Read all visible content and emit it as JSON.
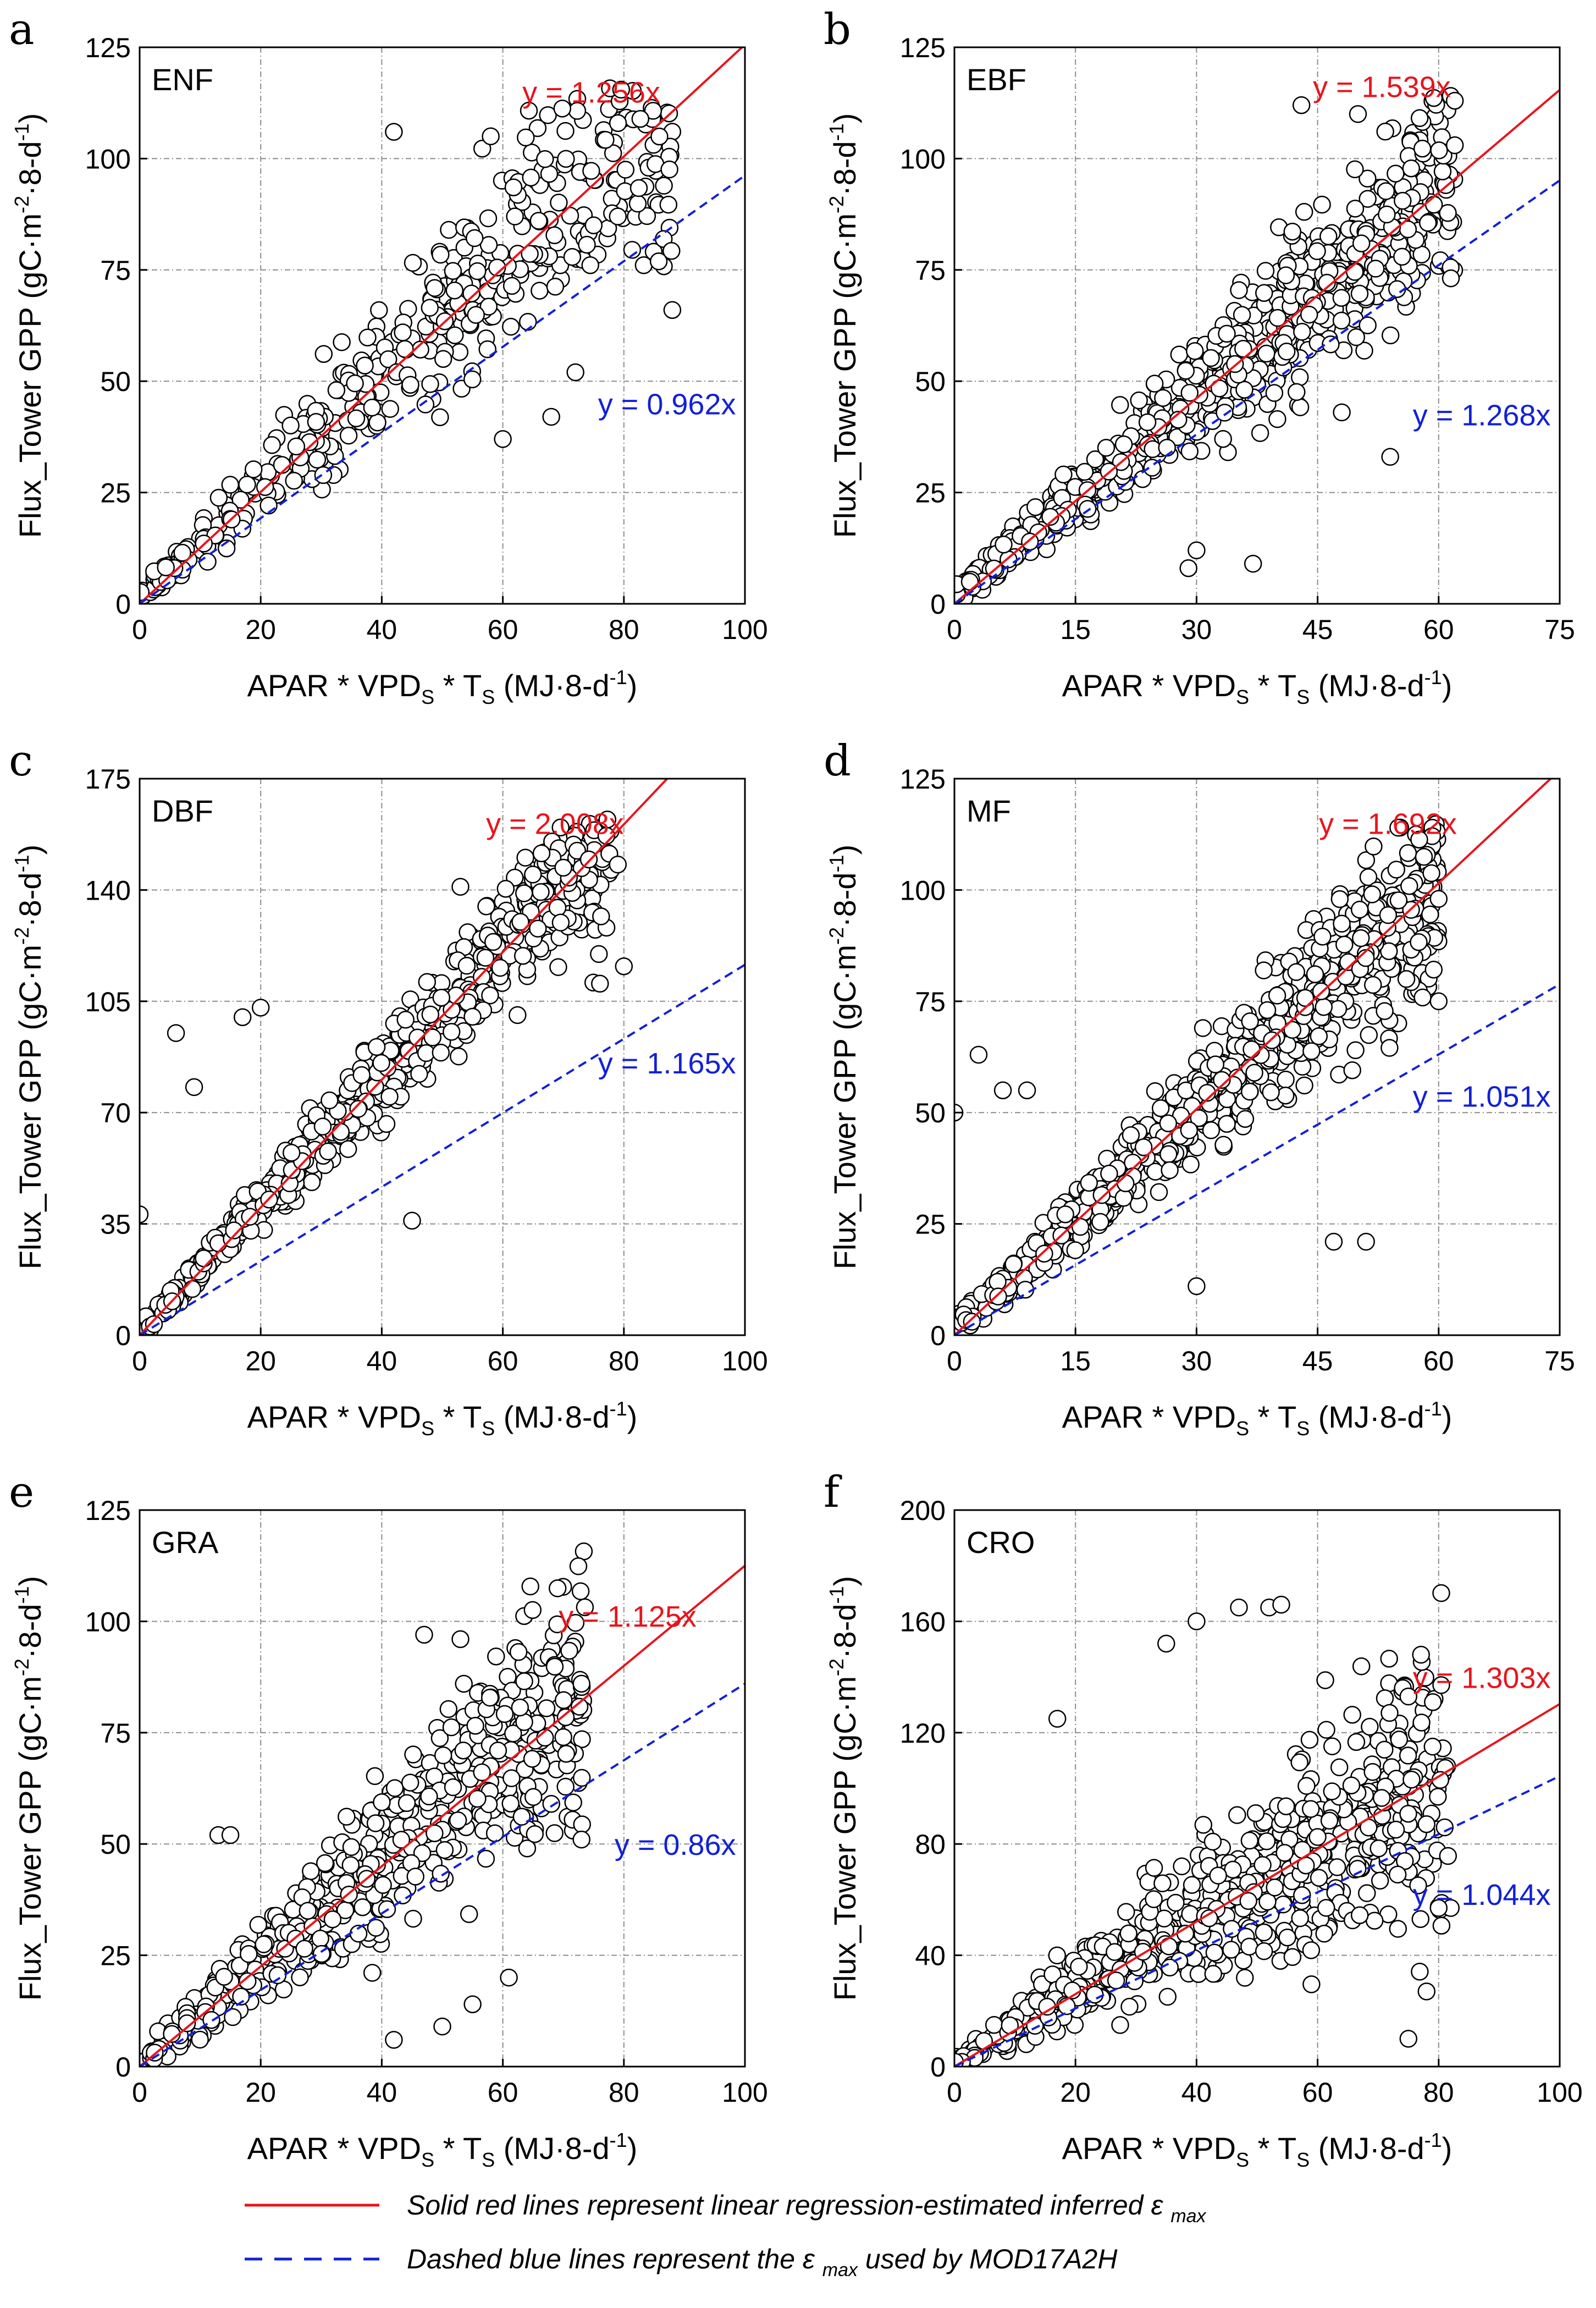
{
  "figure": {
    "colors": {
      "regression": "#e8141c",
      "mod17": "#1220d8",
      "points_edge": "#000000",
      "grid": "#8c8c8c"
    }
  },
  "legend": {
    "regression_text": "Solid red lines represent linear regression-estimated inferred ε",
    "regression_sub": "max",
    "mod17_text_pre": "Dashed blue lines represent the ε",
    "mod17_sub": "max",
    "mod17_text_post": " used by MOD17A2H"
  },
  "chart_data": [
    {
      "panel": "a",
      "cover": "ENF",
      "type": "scatter",
      "xlabel": "APAR * VPDS * TS (MJ·8-d-1)",
      "ylabel": "Flux_Tower GPP (gC·m-2·8-d-1)",
      "xlim": [
        0,
        100
      ],
      "ylim": [
        0,
        125
      ],
      "xticks": [
        0,
        20,
        40,
        60,
        80,
        100
      ],
      "yticks": [
        0,
        25,
        50,
        75,
        100,
        125
      ],
      "grid": true,
      "regression": {
        "slope": 1.256,
        "label": "y = 1.256x"
      },
      "mod17": {
        "slope": 0.962,
        "label": "y = 0.962x"
      },
      "sample": {
        "n": 420,
        "xmax": 88,
        "noise": 0.55,
        "seed": 11,
        "extra": [
          [
            42,
            106
          ],
          [
            58,
            105
          ],
          [
            62,
            87
          ],
          [
            75,
            85
          ],
          [
            79,
            87
          ],
          [
            88,
            66
          ],
          [
            60,
            37
          ],
          [
            68,
            42
          ],
          [
            72,
            52
          ]
        ]
      }
    },
    {
      "panel": "b",
      "cover": "EBF",
      "type": "scatter",
      "xlabel": "APAR * VPDS * TS (MJ·8-d-1)",
      "ylabel": "Flux_Tower GPP (gC·m-2·8-d-1)",
      "xlim": [
        0,
        75
      ],
      "ylim": [
        0,
        125
      ],
      "xticks": [
        0,
        15,
        30,
        45,
        60,
        75
      ],
      "yticks": [
        0,
        25,
        50,
        75,
        100,
        125
      ],
      "grid": true,
      "regression": {
        "slope": 1.539,
        "label": "y = 1.539x"
      },
      "mod17": {
        "slope": 1.268,
        "label": "y = 1.268x"
      },
      "sample": {
        "n": 700,
        "xmax": 62,
        "noise": 0.5,
        "seed": 23,
        "extra": [
          [
            43,
            112
          ],
          [
            50,
            110
          ],
          [
            62,
            113
          ],
          [
            62,
            103
          ],
          [
            48,
            43
          ],
          [
            54,
            33
          ],
          [
            29,
            8
          ],
          [
            30,
            12
          ],
          [
            37,
            9
          ]
        ]
      }
    },
    {
      "panel": "c",
      "cover": "DBF",
      "type": "scatter",
      "xlabel": "APAR * VPDS * TS (MJ·8-d-1)",
      "ylabel": "Flux_Tower GPP (gC·m-2·8-d-1)",
      "xlim": [
        0,
        100
      ],
      "ylim": [
        0,
        175
      ],
      "xticks": [
        0,
        20,
        40,
        60,
        80,
        100
      ],
      "yticks": [
        0,
        35,
        70,
        105,
        140,
        175
      ],
      "grid": true,
      "regression": {
        "slope": 2.008,
        "label": "y = 2.008x"
      },
      "mod17": {
        "slope": 1.165,
        "label": "y = 1.165x"
      },
      "sample": {
        "n": 620,
        "xmax": 78,
        "noise": 0.3,
        "seed": 37,
        "extra": [
          [
            0,
            38
          ],
          [
            6,
            95
          ],
          [
            9,
            78
          ],
          [
            17,
            100
          ],
          [
            20,
            103
          ],
          [
            53,
            141
          ],
          [
            70,
            147
          ],
          [
            79,
            148
          ],
          [
            80,
            116
          ],
          [
            45,
            36
          ]
        ]
      }
    },
    {
      "panel": "d",
      "cover": "MF",
      "type": "scatter",
      "xlabel": "APAR * VPDS * TS (MJ·8-d-1)",
      "ylabel": "Flux_Tower GPP (gC·m-2·8-d-1)",
      "xlim": [
        0,
        75
      ],
      "ylim": [
        0,
        125
      ],
      "xticks": [
        0,
        15,
        30,
        45,
        60,
        75
      ],
      "yticks": [
        0,
        25,
        50,
        75,
        100,
        125
      ],
      "grid": true,
      "regression": {
        "slope": 1.692,
        "label": "y = 1.692x"
      },
      "mod17": {
        "slope": 1.051,
        "label": "y = 1.051x"
      },
      "sample": {
        "n": 760,
        "xmax": 60,
        "noise": 0.42,
        "seed": 53,
        "extra": [
          [
            0,
            50
          ],
          [
            3,
            63
          ],
          [
            6,
            55
          ],
          [
            9,
            55
          ],
          [
            55,
            114
          ],
          [
            60,
            98
          ],
          [
            60,
            75
          ],
          [
            56,
            80
          ],
          [
            47,
            21
          ],
          [
            51,
            21
          ],
          [
            30,
            11
          ]
        ]
      }
    },
    {
      "panel": "e",
      "cover": "GRA",
      "type": "scatter",
      "xlabel": "APAR * VPDS * TS (MJ·8-d-1)",
      "ylabel": "Flux_Tower GPP (gC·m-2·8-d-1)",
      "xlim": [
        0,
        100
      ],
      "ylim": [
        0,
        125
      ],
      "xticks": [
        0,
        20,
        40,
        60,
        80,
        100
      ],
      "yticks": [
        0,
        25,
        50,
        75,
        100,
        125
      ],
      "grid": true,
      "regression": {
        "slope": 1.125,
        "label": "y = 1.125x"
      },
      "mod17": {
        "slope": 0.86,
        "label": "y = 0.86x"
      },
      "sample": {
        "n": 560,
        "xmax": 74,
        "noise": 0.7,
        "seed": 71,
        "extra": [
          [
            47,
            97
          ],
          [
            53,
            96
          ],
          [
            73,
            86
          ],
          [
            70,
            74
          ],
          [
            68,
            59
          ],
          [
            73,
            51
          ],
          [
            61,
            20
          ],
          [
            42,
            6
          ],
          [
            50,
            9
          ],
          [
            55,
            14
          ],
          [
            13,
            52
          ],
          [
            15,
            52
          ]
        ]
      }
    },
    {
      "panel": "f",
      "cover": "CRO",
      "type": "scatter",
      "xlabel": "APAR * VPDS * TS (MJ·8-d-1)",
      "ylabel": "Flux_Tower GPP (gC·m-2·8-d-1)",
      "xlim": [
        0,
        100
      ],
      "ylim": [
        0,
        200
      ],
      "xticks": [
        0,
        20,
        40,
        60,
        80,
        100
      ],
      "yticks": [
        0,
        40,
        80,
        120,
        160,
        200
      ],
      "grid": true,
      "regression": {
        "slope": 1.303,
        "label": "y = 1.303x"
      },
      "mod17": {
        "slope": 1.044,
        "label": "y = 1.044x"
      },
      "sample": {
        "n": 640,
        "xmax": 82,
        "noise": 0.95,
        "seed": 89,
        "extra": [
          [
            52,
            165
          ],
          [
            54,
            166
          ],
          [
            47,
            165
          ],
          [
            40,
            160
          ],
          [
            35,
            152
          ],
          [
            17,
            125
          ],
          [
            75,
            133
          ],
          [
            79,
            115
          ],
          [
            82,
            57
          ],
          [
            80,
            57
          ],
          [
            77,
            53
          ],
          [
            78,
            27
          ],
          [
            75,
            10
          ]
        ]
      }
    }
  ]
}
